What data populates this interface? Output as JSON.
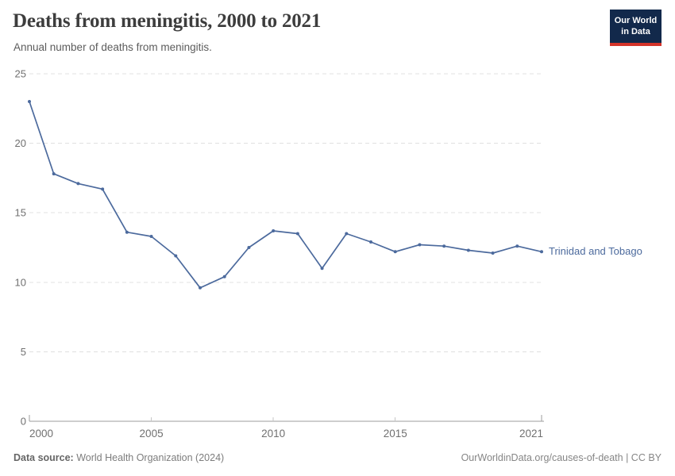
{
  "header": {
    "title": "Deaths from meningitis, 2000 to 2021",
    "subtitle": "Annual number of deaths from meningitis.",
    "logo": {
      "line1": "Our World",
      "line2": "in Data",
      "bg_color": "#12294b",
      "accent_color": "#d4342a"
    }
  },
  "chart_data": {
    "type": "line",
    "title": "Deaths from meningitis, 2000 to 2021",
    "xlabel": "",
    "ylabel": "",
    "x": [
      2000,
      2001,
      2002,
      2003,
      2004,
      2005,
      2006,
      2007,
      2008,
      2009,
      2010,
      2011,
      2012,
      2013,
      2014,
      2015,
      2016,
      2017,
      2018,
      2019,
      2020,
      2021
    ],
    "series": [
      {
        "name": "Trinidad and Tobago",
        "color": "#4c6a9d",
        "values": [
          23.0,
          17.8,
          17.1,
          16.7,
          13.6,
          13.3,
          11.9,
          9.6,
          10.4,
          12.5,
          13.7,
          13.5,
          11.0,
          13.5,
          12.9,
          12.2,
          12.7,
          12.6,
          12.3,
          12.1,
          12.6,
          12.2
        ]
      }
    ],
    "ylim": [
      0,
      25
    ],
    "yticks": [
      0,
      5,
      10,
      15,
      20,
      25
    ],
    "xticks": [
      2000,
      2005,
      2010,
      2015,
      2021
    ],
    "grid": "horizontal-dashed",
    "legend_position": "end-of-line-label"
  },
  "footer": {
    "datasource_label": "Data source:",
    "datasource_value": "World Health Organization (2024)",
    "rights": "OurWorldinData.org/causes-of-death | CC BY"
  },
  "colors": {
    "line": "#4c6a9d",
    "gridline": "#e0e0e0",
    "axis": "#9e9e9e",
    "tick_minor": "#c6c6c6",
    "axis_label": "#707070"
  }
}
